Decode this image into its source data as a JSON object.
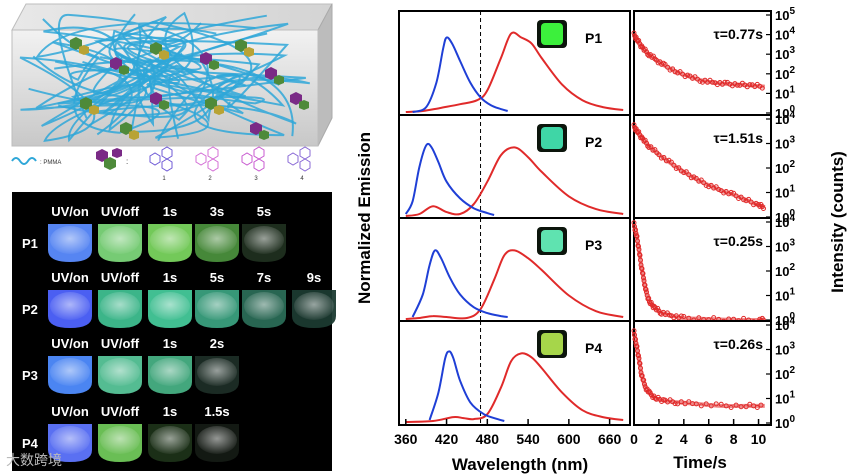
{
  "schematic": {
    "legend_pmma": ": PMMA",
    "legend_colon": ":",
    "compound_numbers": [
      "1",
      "2",
      "3",
      "4"
    ]
  },
  "photo_grid": {
    "rows": [
      {
        "label": "P1",
        "headers": [
          "UV/on",
          "UV/off",
          "1s",
          "3s",
          "5s"
        ],
        "colors": [
          "#5b8cff",
          "#7cd67a",
          "#79d45e",
          "#4a8f3c",
          "#1f2f1f"
        ]
      },
      {
        "label": "P2",
        "headers": [
          "UV/on",
          "UV/off",
          "1s",
          "5s",
          "7s",
          "9s"
        ],
        "colors": [
          "#4f64ff",
          "#3fbf90",
          "#45c99a",
          "#3aa07e",
          "#2a6c56",
          "#1b3a30"
        ]
      },
      {
        "label": "P3",
        "headers": [
          "UV/on",
          "UV/off",
          "1s",
          "2s"
        ],
        "colors": [
          "#4f8cff",
          "#58c69a",
          "#47b084",
          "#1c2d26"
        ]
      },
      {
        "label": "P4",
        "headers": [
          "UV/on",
          "UV/off",
          "1s",
          "1.5s"
        ],
        "colors": [
          "#5f76ff",
          "#70c85a",
          "#1c3218",
          "#141a14"
        ]
      }
    ]
  },
  "watermark": "大数跨境",
  "chart_data": [
    {
      "type": "line",
      "panel": "emission",
      "ylabel": "Normalized Emission",
      "xlabel": "Wavelength (nm)",
      "xlim": [
        350,
        690
      ],
      "xticks": [
        360,
        420,
        480,
        540,
        600,
        660
      ],
      "dashed_line_x": 470,
      "series_colors": {
        "excitation": "#1f3fd6",
        "emission": "#e02a2a"
      },
      "subpanels": [
        {
          "label": "P1",
          "swatch_color": "#3cf03c",
          "excitation": {
            "x": [
              370,
              390,
              405,
              415,
              420,
              428,
              440,
              455,
              470,
              485,
              500,
              510
            ],
            "y": [
              0.0,
              0.05,
              0.3,
              0.65,
              0.76,
              0.7,
              0.52,
              0.3,
              0.15,
              0.07,
              0.03,
              0.01
            ]
          },
          "emission": {
            "x": [
              360,
              385,
              410,
              440,
              465,
              480,
              500,
              515,
              530,
              545,
              560,
              590,
              620,
              650,
              680
            ],
            "y": [
              0.0,
              0.01,
              0.04,
              0.08,
              0.12,
              0.22,
              0.55,
              0.8,
              0.76,
              0.7,
              0.55,
              0.28,
              0.12,
              0.05,
              0.02
            ]
          }
        },
        {
          "label": "P2",
          "swatch_color": "#3fd6a6",
          "excitation": {
            "x": [
              360,
              370,
              380,
              390,
              398,
              408,
              420,
              440,
              460,
              480,
              490
            ],
            "y": [
              0.02,
              0.15,
              0.5,
              0.72,
              0.7,
              0.55,
              0.35,
              0.18,
              0.08,
              0.03,
              0.01
            ]
          },
          "emission": {
            "x": [
              360,
              380,
              400,
              420,
              440,
              460,
              480,
              500,
              520,
              540,
              560,
              600,
              640,
              680
            ],
            "y": [
              0.0,
              0.02,
              0.1,
              0.04,
              0.02,
              0.12,
              0.35,
              0.62,
              0.7,
              0.6,
              0.45,
              0.2,
              0.07,
              0.02
            ]
          }
        },
        {
          "label": "P3",
          "swatch_color": "#5fe3b0",
          "excitation": {
            "x": [
              370,
              385,
              395,
              403,
              412,
              425,
              440,
              460,
              480,
              500,
              510
            ],
            "y": [
              0.02,
              0.25,
              0.55,
              0.7,
              0.62,
              0.42,
              0.25,
              0.12,
              0.06,
              0.03,
              0.02
            ]
          },
          "emission": {
            "x": [
              360,
              380,
              400,
              420,
              450,
              470,
              490,
              505,
              520,
              540,
              560,
              600,
              640,
              680
            ],
            "y": [
              0.0,
              0.01,
              0.03,
              0.02,
              0.01,
              0.1,
              0.4,
              0.65,
              0.7,
              0.62,
              0.5,
              0.24,
              0.08,
              0.02
            ]
          }
        },
        {
          "label": "P4",
          "swatch_color": "#a6d64a",
          "excitation": {
            "x": [
              395,
              408,
              418,
              424,
              430,
              440,
              455,
              475,
              495,
              505
            ],
            "y": [
              0.02,
              0.3,
              0.65,
              0.72,
              0.65,
              0.42,
              0.2,
              0.08,
              0.03,
              0.01
            ]
          },
          "emission": {
            "x": [
              360,
              400,
              430,
              445,
              460,
              480,
              500,
              515,
              530,
              545,
              560,
              590,
              620,
              650,
              680
            ],
            "y": [
              0.0,
              0.01,
              0.05,
              0.04,
              0.03,
              0.08,
              0.35,
              0.62,
              0.7,
              0.66,
              0.55,
              0.3,
              0.12,
              0.05,
              0.02
            ]
          }
        }
      ]
    },
    {
      "type": "scatter",
      "panel": "decay",
      "ylabel": "Intensity (counts)",
      "xlabel": "Time/s",
      "xlim": [
        0,
        11
      ],
      "xticks": [
        0,
        2,
        4,
        6,
        8,
        10
      ],
      "yscale": "log",
      "color": "#e02a2a",
      "subpanels": [
        {
          "tau": "τ=0.77s",
          "ylim_exp": [
            0,
            5
          ],
          "ytick_exps": [
            0,
            1,
            2,
            3,
            4,
            5
          ],
          "decay": {
            "x": [
              0,
              0.3,
              0.7,
              1.2,
              1.8,
              2.5,
              3.5,
              4.5,
              5.5,
              6.5,
              7.5,
              8.5,
              9.5,
              10.5
            ],
            "y": [
              10000,
              5000,
              2000,
              1000,
              500,
              250,
              120,
              70,
              45,
              35,
              30,
              28,
              25,
              22
            ]
          }
        },
        {
          "tau": "τ=1.51s",
          "ylim_exp": [
            0,
            4
          ],
          "ytick_exps": [
            0,
            1,
            2,
            3,
            4
          ],
          "decay": {
            "x": [
              0,
              0.3,
              0.7,
              1.2,
              2,
              3,
              4,
              5,
              6,
              7,
              8,
              9,
              10,
              10.5
            ],
            "y": [
              5000,
              3000,
              1500,
              800,
              350,
              150,
              70,
              35,
              20,
              12,
              8,
              5,
              3,
              2.5
            ]
          }
        },
        {
          "tau": "τ=0.25s",
          "ylim_exp": [
            0,
            4
          ],
          "ytick_exps": [
            0,
            1,
            2,
            3,
            4
          ],
          "decay": {
            "x": [
              0,
              0.2,
              0.4,
              0.6,
              0.8,
              1.0,
              1.3,
              1.7,
              2.2,
              3,
              4,
              6,
              8,
              10,
              10.5
            ],
            "y": [
              8000,
              3000,
              700,
              150,
              40,
              12,
              5,
              3,
              2,
              1.5,
              1.2,
              1.1,
              1.0,
              1.0,
              1.0
            ]
          }
        },
        {
          "tau": "τ=0.26s",
          "ylim_exp": [
            0,
            4
          ],
          "ytick_exps": [
            0,
            1,
            2,
            3,
            4
          ],
          "decay": {
            "x": [
              0,
              0.2,
              0.4,
              0.6,
              0.9,
              1.3,
              1.8,
              2.5,
              3.5,
              5,
              7,
              9,
              10.5
            ],
            "y": [
              5000,
              1500,
              400,
              100,
              30,
              15,
              10,
              8,
              7,
              6,
              5,
              5,
              5
            ]
          }
        }
      ]
    }
  ]
}
